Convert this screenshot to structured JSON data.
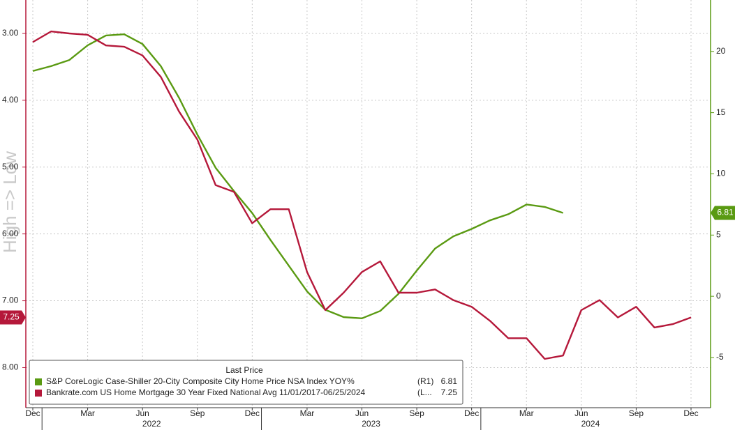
{
  "chart_data": {
    "type": "line",
    "y_label": "High => Low",
    "legend_title": "Last Price",
    "ylim": [
      2.5,
      8.6
    ],
    "y_inverted": true,
    "yticks": [
      {
        "value": 3,
        "label": "3.00"
      },
      {
        "value": 4,
        "label": "4.00"
      },
      {
        "value": 5,
        "label": "5.00"
      },
      {
        "value": 6,
        "label": "6.00"
      },
      {
        "value": 7,
        "label": "7.00"
      },
      {
        "value": 8,
        "label": "8.00"
      }
    ],
    "y2lim": [
      -9.1,
      24.2
    ],
    "y2ticks": [
      -5,
      0,
      5,
      10,
      15,
      20
    ],
    "xlim": [
      "2021-12",
      "2024-12"
    ],
    "xticks": [
      {
        "value": "2021-12",
        "label": "Dec"
      },
      {
        "value": "2022-03",
        "label": "Mar"
      },
      {
        "value": "2022-06",
        "label": "Jun"
      },
      {
        "value": "2022-09",
        "label": "Sep"
      },
      {
        "value": "2022-12",
        "label": "Dec"
      },
      {
        "value": "2023-03",
        "label": "Mar"
      },
      {
        "value": "2023-06",
        "label": "Jun"
      },
      {
        "value": "2023-09",
        "label": "Sep"
      },
      {
        "value": "2023-12",
        "label": "Dec"
      },
      {
        "value": "2024-03",
        "label": "Mar"
      },
      {
        "value": "2024-06",
        "label": "Jun"
      },
      {
        "value": "2024-09",
        "label": "Sep"
      },
      {
        "value": "2024-12",
        "label": "Dec"
      }
    ],
    "years": [
      "2022",
      "2023",
      "2024"
    ],
    "grid": true,
    "series": [
      {
        "name": "S&P CoreLogic Case-Shiller 20-City Composite City Home Price NSA Index YOY%",
        "axis_tag": "(R1)",
        "color": "#5a9a12",
        "axis": "y2",
        "last_value": 6.81,
        "x": [
          "2021-12",
          "2022-01",
          "2022-02",
          "2022-03",
          "2022-04",
          "2022-05",
          "2022-06",
          "2022-07",
          "2022-08",
          "2022-09",
          "2022-10",
          "2022-11",
          "2022-12",
          "2023-01",
          "2023-02",
          "2023-03",
          "2023-04",
          "2023-05",
          "2023-06",
          "2023-07",
          "2023-08",
          "2023-09",
          "2023-10",
          "2023-11",
          "2023-12",
          "2024-01",
          "2024-02",
          "2024-03",
          "2024-04",
          "2024-05"
        ],
        "values": [
          18.4,
          18.8,
          19.3,
          20.5,
          21.3,
          21.4,
          20.6,
          18.8,
          16.2,
          13.2,
          10.5,
          8.6,
          6.8,
          4.6,
          2.5,
          0.4,
          -1.1,
          -1.7,
          -1.8,
          -1.2,
          0.2,
          2.1,
          3.9,
          4.9,
          5.5,
          6.2,
          6.7,
          7.5,
          7.3,
          6.81
        ]
      },
      {
        "name": "Bankrate.com US Home Mortgage 30 Year Fixed National Avg 11/01/2017-06/25/2024",
        "axis_tag": "(L...",
        "color": "#b5183a",
        "axis": "y",
        "last_value": 7.25,
        "x": [
          "2021-12",
          "2022-01",
          "2022-02",
          "2022-03",
          "2022-04",
          "2022-05",
          "2022-06",
          "2022-07",
          "2022-08",
          "2022-09",
          "2022-10",
          "2022-11",
          "2022-12",
          "2023-01",
          "2023-02",
          "2023-03",
          "2023-04",
          "2023-05",
          "2023-06",
          "2023-07",
          "2023-08",
          "2023-09",
          "2023-10",
          "2023-11",
          "2023-12",
          "2024-01",
          "2024-02",
          "2024-03",
          "2024-04",
          "2024-05",
          "2024-06",
          "2024-07",
          "2024-08",
          "2024-09",
          "2024-10",
          "2024-11",
          "2024-12"
        ],
        "values": [
          3.13,
          2.97,
          3.0,
          3.02,
          3.18,
          3.2,
          3.33,
          3.65,
          4.17,
          4.59,
          5.27,
          5.37,
          5.84,
          5.63,
          5.63,
          6.57,
          7.14,
          6.88,
          6.57,
          6.41,
          6.88,
          6.88,
          6.83,
          6.99,
          7.09,
          7.3,
          7.56,
          7.56,
          7.87,
          7.82,
          7.14,
          6.99,
          7.25,
          7.09,
          7.4,
          7.35,
          7.25
        ]
      }
    ]
  }
}
